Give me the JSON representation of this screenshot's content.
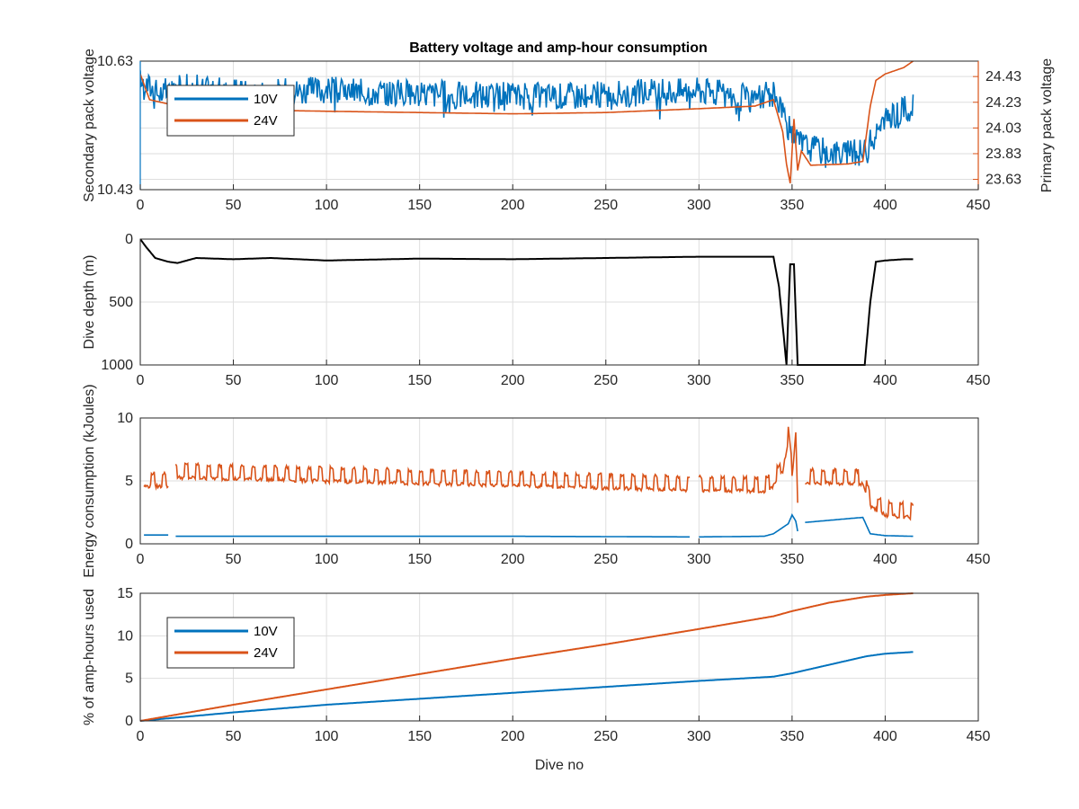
{
  "figure_title": "Battery voltage and amp-hour consumption",
  "colors": {
    "series_10v": "#0072BD",
    "series_24v": "#D95319",
    "depth": "#000000",
    "grid": "#dedede",
    "axis": "#262626"
  },
  "chart_data": [
    {
      "type": "line",
      "title": "Battery voltage and amp-hour consumption",
      "xlabel": "",
      "ylabel": "Secondary pack voltage",
      "y2label": "Primary pack voltage",
      "xlim": [
        0,
        450
      ],
      "ylim": [
        10.43,
        10.63
      ],
      "y2lim": [
        23.55,
        24.55
      ],
      "xticks": [
        0,
        50,
        100,
        150,
        200,
        250,
        300,
        350,
        400,
        450
      ],
      "yticks": [
        10.43,
        10.63
      ],
      "y2ticks": [
        23.63,
        23.83,
        24.03,
        24.23,
        24.43
      ],
      "grid": true,
      "legend": {
        "placement": "top-left",
        "entries": [
          "10V",
          "24V"
        ]
      },
      "series": [
        {
          "name": "10V",
          "axis": "left",
          "noisy": true,
          "x": [
            0,
            10,
            25,
            50,
            100,
            150,
            200,
            250,
            300,
            330,
            340,
            345,
            350,
            360,
            380,
            390,
            395,
            400,
            410,
            415
          ],
          "y": [
            10.6,
            10.58,
            10.59,
            10.58,
            10.585,
            10.58,
            10.575,
            10.578,
            10.585,
            10.57,
            10.58,
            10.555,
            10.51,
            10.495,
            10.485,
            10.49,
            10.52,
            10.535,
            10.555,
            10.56
          ]
        },
        {
          "name": "24V",
          "axis": "right",
          "noisy": false,
          "x": [
            0,
            5,
            20,
            40,
            60,
            100,
            150,
            200,
            250,
            300,
            330,
            340,
            345,
            347,
            349,
            351,
            353,
            355,
            360,
            380,
            388,
            392,
            395,
            400,
            410,
            415
          ],
          "y": [
            24.45,
            24.25,
            24.2,
            24.18,
            24.17,
            24.16,
            24.15,
            24.14,
            24.15,
            24.18,
            24.2,
            24.25,
            24.0,
            23.75,
            23.6,
            24.1,
            23.7,
            23.85,
            23.74,
            23.75,
            23.77,
            24.2,
            24.4,
            24.45,
            24.5,
            24.55
          ]
        }
      ]
    },
    {
      "type": "line",
      "title": "",
      "xlabel": "",
      "ylabel": "Dive depth (m)",
      "xlim": [
        0,
        450
      ],
      "ylim": [
        1000,
        0
      ],
      "xticks": [
        0,
        50,
        100,
        150,
        200,
        250,
        300,
        350,
        400,
        450
      ],
      "yticks": [
        0,
        500,
        1000
      ],
      "ytick_labels": [
        "0",
        "500",
        "1000"
      ],
      "y_reversed": true,
      "grid": true,
      "series": [
        {
          "axis": "left",
          "noisy": false,
          "x": [
            0,
            3,
            8,
            15,
            20,
            30,
            50,
            70,
            100,
            150,
            200,
            250,
            300,
            340,
            343,
            347,
            349,
            351,
            353,
            354,
            360,
            380,
            389,
            392,
            395,
            400,
            410,
            415
          ],
          "y": [
            0,
            60,
            150,
            180,
            190,
            150,
            160,
            150,
            170,
            155,
            160,
            150,
            140,
            140,
            380,
            1000,
            200,
            200,
            1000,
            1000,
            1000,
            1000,
            1000,
            500,
            180,
            170,
            160,
            160
          ]
        }
      ]
    },
    {
      "type": "line",
      "title": "",
      "xlabel": "",
      "ylabel": "Energy consumption (kJoules)",
      "xlim": [
        0,
        450
      ],
      "ylim": [
        0,
        10
      ],
      "xticks": [
        0,
        50,
        100,
        150,
        200,
        250,
        300,
        350,
        400,
        450
      ],
      "yticks": [
        0,
        5,
        10
      ],
      "grid": true,
      "series": [
        {
          "name": "24V",
          "axis": "left",
          "noisy": true,
          "x": [
            2,
            15,
            19,
            295,
            300,
            335,
            340,
            345,
            348,
            350,
            352,
            353,
            357,
            380,
            388,
            392,
            400,
            415
          ],
          "y": [
            4.8,
            4.8,
            5.5,
            4.5,
            4.5,
            4.4,
            4.8,
            6.0,
            8.5,
            5.5,
            9.0,
            3.5,
            5.1,
            5.0,
            5.0,
            3.2,
            2.5,
            2.3
          ],
          "gaps": [
            [
              15,
              19
            ],
            [
              295,
              300
            ],
            [
              353,
              357
            ]
          ]
        },
        {
          "name": "10V",
          "axis": "left",
          "noisy": false,
          "x": [
            2,
            15,
            19,
            100,
            200,
            295,
            300,
            335,
            340,
            345,
            348,
            350,
            352,
            353,
            357,
            380,
            388,
            392,
            400,
            415
          ],
          "y": [
            0.7,
            0.7,
            0.6,
            0.6,
            0.6,
            0.55,
            0.55,
            0.6,
            0.8,
            1.3,
            1.6,
            2.3,
            1.8,
            1.0,
            1.7,
            2.0,
            2.1,
            0.8,
            0.65,
            0.6
          ],
          "gaps": [
            [
              15,
              19
            ],
            [
              295,
              300
            ],
            [
              353,
              357
            ]
          ]
        }
      ]
    },
    {
      "type": "line",
      "title": "",
      "xlabel": "Dive no",
      "ylabel": "% of amp-hours used",
      "xlim": [
        0,
        450
      ],
      "ylim": [
        0,
        15
      ],
      "xticks": [
        0,
        50,
        100,
        150,
        200,
        250,
        300,
        350,
        400,
        450
      ],
      "yticks": [
        0,
        5,
        10,
        15
      ],
      "grid": true,
      "legend": {
        "placement": "top-left",
        "entries": [
          "10V",
          "24V"
        ]
      },
      "series": [
        {
          "name": "10V",
          "axis": "left",
          "noisy": false,
          "x": [
            0,
            50,
            100,
            150,
            200,
            250,
            300,
            340,
            350,
            370,
            390,
            400,
            415
          ],
          "y": [
            0,
            1.0,
            1.9,
            2.6,
            3.3,
            4.0,
            4.7,
            5.2,
            5.6,
            6.6,
            7.6,
            7.9,
            8.1
          ]
        },
        {
          "name": "24V",
          "axis": "left",
          "noisy": false,
          "x": [
            0,
            50,
            100,
            150,
            200,
            250,
            300,
            340,
            350,
            370,
            390,
            400,
            415
          ],
          "y": [
            0,
            1.9,
            3.7,
            5.5,
            7.3,
            9.0,
            10.8,
            12.3,
            12.9,
            13.9,
            14.6,
            14.8,
            15.0
          ]
        }
      ]
    }
  ]
}
